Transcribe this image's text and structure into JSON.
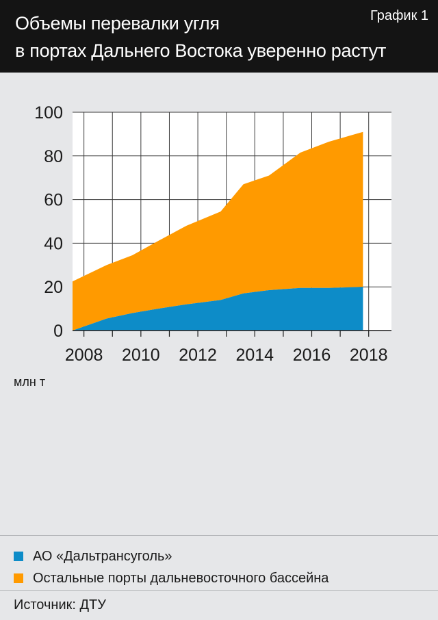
{
  "header": {
    "title_line1": "Объемы перевалки угля",
    "title_line2": "в портах Дальнего Востока уверенно растут",
    "badge": "График 1"
  },
  "unit_label": "млн т",
  "legend": [
    {
      "label": "АО «Дальтрансуголь»",
      "color": "#0d8cc8"
    },
    {
      "label": "Остальные порты дальневосточного бассейна",
      "color": "#ff9a00"
    }
  ],
  "source": "Источник: ДТУ",
  "chart_data": {
    "type": "area",
    "stacked": true,
    "x": [
      2007.6,
      2008.8,
      2009.7,
      2010.6,
      2011.6,
      2012.8,
      2013.6,
      2014.5,
      2015.6,
      2016.6,
      2017.8
    ],
    "series": [
      {
        "name": "АО «Дальтрансуголь»",
        "color": "#0d8cc8",
        "values": [
          0,
          5.5,
          8,
          10,
          12,
          14,
          17,
          18.5,
          19.5,
          19.5,
          20
        ]
      },
      {
        "name": "Остальные порты дальневосточного бассейна",
        "color": "#ff9a00",
        "values": [
          22.5,
          24.5,
          26.5,
          31,
          36,
          40.5,
          50,
          52.5,
          62,
          67,
          71
        ]
      }
    ],
    "xticks": [
      2008,
      2010,
      2012,
      2014,
      2016,
      2018
    ],
    "yticks": [
      0,
      20,
      40,
      60,
      80,
      100
    ],
    "xlim": [
      2007.6,
      2018.8
    ],
    "ylim": [
      0,
      100
    ],
    "grid": true
  }
}
